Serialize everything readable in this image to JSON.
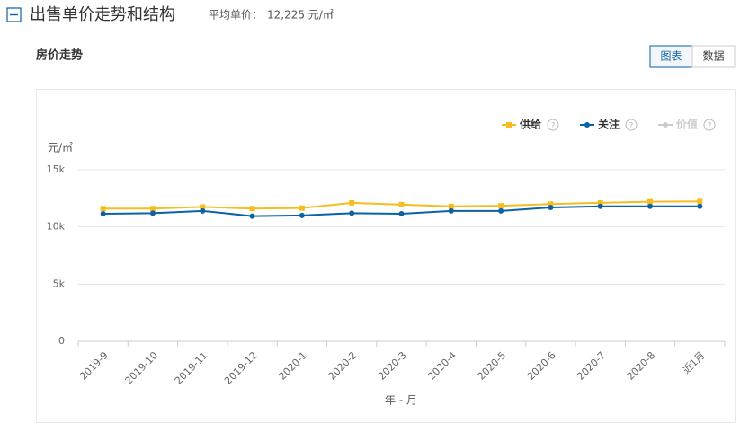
{
  "header": {
    "title": "出售单价走势和结构",
    "avg_label": "平均单价：",
    "avg_value": "12,225 元/㎡"
  },
  "section_title": "房价走势",
  "buttons": [
    "图表",
    "数据"
  ],
  "chart_data": {
    "type": "line",
    "y_unit": "元/㎡",
    "x_label": "年 - 月",
    "categories": [
      "2019-9",
      "2019-10",
      "2019-11",
      "2019-12",
      "2020-1",
      "2020-2",
      "2020-3",
      "2020-4",
      "2020-5",
      "2020-6",
      "2020-7",
      "2020-8",
      "近1月"
    ],
    "series": [
      {
        "name": "供给",
        "color": "#f5bd1f",
        "marker": "square",
        "values": [
          11600,
          11600,
          11750,
          11600,
          11650,
          12100,
          11950,
          11800,
          11850,
          12000,
          12100,
          12200,
          12225
        ]
      },
      {
        "name": "关注",
        "color": "#0b62a4",
        "marker": "circle",
        "values": [
          11150,
          11200,
          11400,
          10950,
          11000,
          11200,
          11150,
          11400,
          11400,
          11700,
          11800,
          11800,
          11800
        ]
      }
    ],
    "disabled_series": [
      {
        "name": "价值",
        "color": "#cccccc"
      }
    ],
    "ylim": [
      0,
      15000
    ],
    "yticks": [
      0,
      {
        "value": 5000,
        "label": "5k"
      },
      {
        "value": 10000,
        "label": "10k"
      },
      {
        "value": 15000,
        "label": "15k"
      }
    ],
    "grid": true
  }
}
